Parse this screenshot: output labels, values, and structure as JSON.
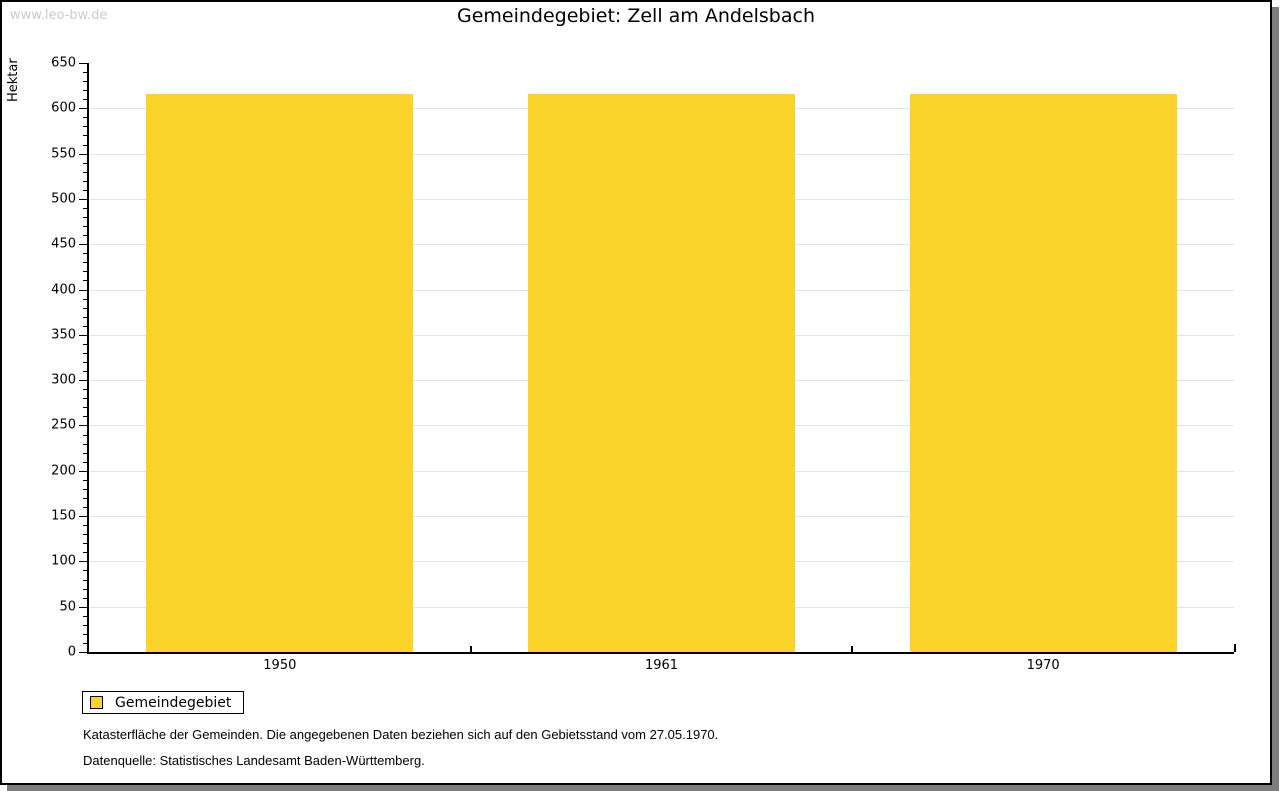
{
  "page": {
    "watermark": "www.leo-bw.de",
    "title": "Gemeindegebiet: Zell am Andelsbach"
  },
  "chart_data": {
    "type": "bar",
    "title": "Gemeindegebiet: Zell am Andelsbach",
    "categories": [
      "1950",
      "1961",
      "1970"
    ],
    "series": [
      {
        "name": "Gemeindegebiet",
        "values": [
          616,
          616,
          616
        ]
      }
    ],
    "xlabel": "",
    "ylabel": "Hektar",
    "ylim": [
      0,
      650
    ],
    "y_major_step": 50,
    "y_minor_step": 10,
    "grid": true,
    "bar_color": "#FCD32B",
    "bar_width_ratio": 0.7,
    "legend_position": "bottom-left"
  },
  "legend": {
    "label": "Gemeindegebiet",
    "swatch_color": "#FCD32B"
  },
  "footer": {
    "line1": "Katasterfläche der Gemeinden. Die angegebenen Daten beziehen sich auf den Gebietsstand vom 27.05.1970.",
    "line2": "Datenquelle: Statistisches Landesamt Baden-Württemberg."
  }
}
